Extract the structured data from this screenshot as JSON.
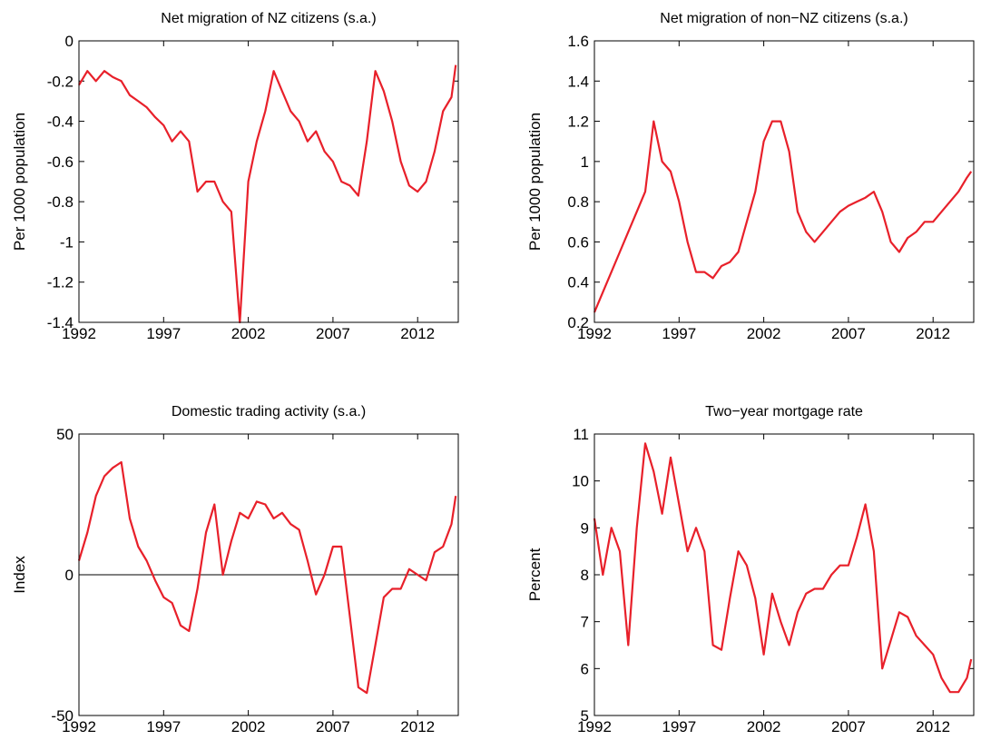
{
  "chart_data": [
    {
      "type": "line",
      "title": "Net migration of NZ citizens (s.a.)",
      "y_label": "Per 1000 population",
      "x": [
        1992,
        1992.5,
        1993,
        1993.5,
        1994,
        1994.5,
        1995,
        1995.5,
        1996,
        1996.5,
        1997,
        1997.5,
        1998,
        1998.5,
        1999,
        1999.5,
        2000,
        2000.5,
        2001,
        2001.5,
        2002,
        2002.5,
        2003,
        2003.5,
        2004,
        2004.5,
        2005,
        2005.5,
        2006,
        2006.5,
        2007,
        2007.5,
        2008,
        2008.5,
        2009,
        2009.5,
        2010,
        2010.5,
        2011,
        2011.5,
        2012,
        2012.5,
        2013,
        2013.5,
        2014,
        2014.25
      ],
      "series": [
        {
          "color": "#e8202a",
          "values": [
            -0.22,
            -0.15,
            -0.2,
            -0.15,
            -0.18,
            -0.2,
            -0.27,
            -0.3,
            -0.33,
            -0.38,
            -0.42,
            -0.5,
            -0.45,
            -0.5,
            -0.75,
            -0.7,
            -0.7,
            -0.8,
            -0.85,
            -1.4,
            -0.7,
            -0.5,
            -0.35,
            -0.15,
            -0.25,
            -0.35,
            -0.4,
            -0.5,
            -0.45,
            -0.55,
            -0.6,
            -0.7,
            -0.72,
            -0.77,
            -0.5,
            -0.15,
            -0.25,
            -0.4,
            -0.6,
            -0.72,
            -0.75,
            -0.7,
            -0.55,
            -0.35,
            -0.28,
            -0.12
          ]
        }
      ],
      "xlim": [
        1992,
        2014.4
      ],
      "xticks": [
        1992,
        1997,
        2002,
        2007,
        2012
      ],
      "ylim": [
        -1.4,
        0
      ],
      "yticks": [
        -1.4,
        -1.2,
        -1,
        -0.8,
        -0.6,
        -0.4,
        -0.2,
        0
      ]
    },
    {
      "type": "line",
      "title": "Net migration of non−NZ citizens (s.a.)",
      "y_label": "Per 1000 population",
      "x": [
        1992,
        1992.5,
        1993,
        1993.5,
        1994,
        1994.5,
        1995,
        1995.5,
        1996,
        1996.5,
        1997,
        1997.5,
        1998,
        1998.5,
        1999,
        1999.5,
        2000,
        2000.5,
        2001,
        2001.5,
        2002,
        2002.5,
        2003,
        2003.5,
        2004,
        2004.5,
        2005,
        2005.5,
        2006,
        2006.5,
        2007,
        2007.5,
        2008,
        2008.5,
        2009,
        2009.5,
        2010,
        2010.5,
        2011,
        2011.5,
        2012,
        2012.5,
        2013,
        2013.5,
        2014,
        2014.25
      ],
      "series": [
        {
          "color": "#e8202a",
          "values": [
            0.25,
            0.35,
            0.45,
            0.55,
            0.65,
            0.75,
            0.85,
            1.2,
            1.0,
            0.95,
            0.8,
            0.6,
            0.45,
            0.45,
            0.42,
            0.48,
            0.5,
            0.55,
            0.7,
            0.85,
            1.1,
            1.2,
            1.2,
            1.05,
            0.75,
            0.65,
            0.6,
            0.65,
            0.7,
            0.75,
            0.78,
            0.8,
            0.82,
            0.85,
            0.75,
            0.6,
            0.55,
            0.62,
            0.65,
            0.7,
            0.7,
            0.75,
            0.8,
            0.85,
            0.92,
            0.95
          ]
        }
      ],
      "xlim": [
        1992,
        2014.4
      ],
      "xticks": [
        1992,
        1997,
        2002,
        2007,
        2012
      ],
      "ylim": [
        0.2,
        1.6
      ],
      "yticks": [
        0.2,
        0.4,
        0.6,
        0.8,
        1,
        1.2,
        1.4,
        1.6
      ]
    },
    {
      "type": "line",
      "title": "Domestic trading activity (s.a.)",
      "y_label": "Index",
      "x": [
        1992,
        1992.5,
        1993,
        1993.5,
        1994,
        1994.5,
        1995,
        1995.5,
        1996,
        1996.5,
        1997,
        1997.5,
        1998,
        1998.5,
        1999,
        1999.5,
        2000,
        2000.5,
        2001,
        2001.5,
        2002,
        2002.5,
        2003,
        2003.5,
        2004,
        2004.5,
        2005,
        2005.5,
        2006,
        2006.5,
        2007,
        2007.5,
        2008,
        2008.5,
        2009,
        2009.5,
        2010,
        2010.5,
        2011,
        2011.5,
        2012,
        2012.5,
        2013,
        2013.5,
        2014,
        2014.25
      ],
      "series": [
        {
          "color": "#e8202a",
          "values": [
            5,
            15,
            28,
            35,
            38,
            40,
            20,
            10,
            5,
            -2,
            -8,
            -10,
            -18,
            -20,
            -5,
            15,
            25,
            0,
            12,
            22,
            20,
            26,
            25,
            20,
            22,
            18,
            16,
            5,
            -7,
            0,
            10,
            10,
            -15,
            -40,
            -42,
            -25,
            -8,
            -5,
            -5,
            2,
            0,
            -2,
            8,
            10,
            18,
            28
          ]
        }
      ],
      "reference_line": 0,
      "xlim": [
        1992,
        2014.4
      ],
      "xticks": [
        1992,
        1997,
        2002,
        2007,
        2012
      ],
      "ylim": [
        -50,
        50
      ],
      "yticks": [
        -50,
        0,
        50
      ]
    },
    {
      "type": "line",
      "title": "Two−year mortgage rate",
      "y_label": "Percent",
      "x": [
        1992,
        1992.5,
        1993,
        1993.5,
        1994,
        1994.5,
        1995,
        1995.5,
        1996,
        1996.5,
        1997,
        1997.5,
        1998,
        1998.5,
        1999,
        1999.5,
        2000,
        2000.5,
        2001,
        2001.5,
        2002,
        2002.5,
        2003,
        2003.5,
        2004,
        2004.5,
        2005,
        2005.5,
        2006,
        2006.5,
        2007,
        2007.5,
        2008,
        2008.5,
        2009,
        2009.5,
        2010,
        2010.5,
        2011,
        2011.5,
        2012,
        2012.5,
        2013,
        2013.5,
        2014,
        2014.25
      ],
      "series": [
        {
          "color": "#e8202a",
          "values": [
            9.2,
            8.0,
            9.0,
            8.5,
            6.5,
            9.0,
            10.8,
            10.2,
            9.3,
            10.5,
            9.5,
            8.5,
            9.0,
            8.5,
            6.5,
            6.4,
            7.5,
            8.5,
            8.2,
            7.5,
            6.3,
            7.6,
            7.0,
            6.5,
            7.2,
            7.6,
            7.7,
            7.7,
            8.0,
            8.2,
            8.2,
            8.8,
            9.5,
            8.5,
            6.0,
            6.6,
            7.2,
            7.1,
            6.7,
            6.5,
            6.3,
            5.8,
            5.5,
            5.5,
            5.8,
            6.2
          ]
        }
      ],
      "xlim": [
        1992,
        2014.4
      ],
      "xticks": [
        1992,
        1997,
        2002,
        2007,
        2012
      ],
      "ylim": [
        5,
        11
      ],
      "yticks": [
        5,
        6,
        7,
        8,
        9,
        10,
        11
      ]
    }
  ]
}
